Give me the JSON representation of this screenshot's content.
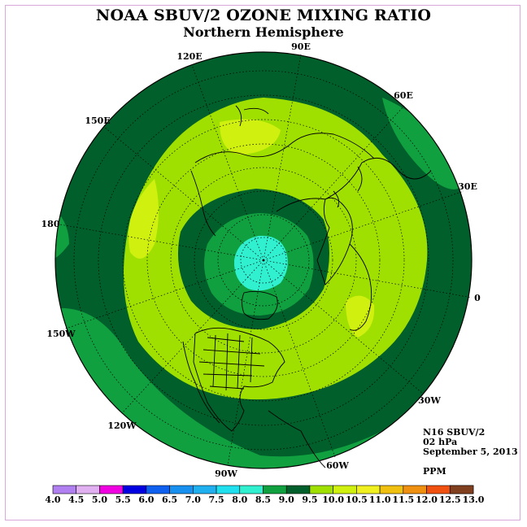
{
  "title": "NOAA SBUV/2 OZONE MIXING RATIO",
  "subtitle": "Northern Hemisphere",
  "longitude_labels": [
    "90E",
    "60E",
    "30E",
    "0",
    "30W",
    "60W",
    "90W",
    "120W",
    "150W",
    "180",
    "150E",
    "120E"
  ],
  "info": {
    "instrument": "N16 SBUV/2",
    "level": "02 hPa",
    "date": "September 5, 2013",
    "units": "PPM"
  },
  "legend": {
    "ticks": [
      "4.0",
      "4.5",
      "5.0",
      "5.5",
      "6.0",
      "6.5",
      "7.0",
      "7.5",
      "8.0",
      "8.5",
      "9.0",
      "9.5",
      "10.0",
      "10.5",
      "11.0",
      "11.5",
      "12.0",
      "12.5",
      "13.0"
    ],
    "colors": [
      "#b080f0",
      "#e0b0f0",
      "#f000e0",
      "#0000e0",
      "#1060f0",
      "#1890f0",
      "#20b0f0",
      "#20e0f0",
      "#30f0d0",
      "#10a040",
      "#005f2a",
      "#a0e000",
      "#d0f010",
      "#f0f020",
      "#f0c010",
      "#f09010",
      "#f05010",
      "#e00000",
      "#804020"
    ]
  },
  "map": {
    "band_colors": {
      "8.0-8.5": "#30f0d0",
      "8.5-9.0": "#10a040",
      "9.0-9.5": "#005f2a",
      "9.5-10.0": "#a0e000",
      "10.0-10.5": "#d0f010"
    }
  }
}
